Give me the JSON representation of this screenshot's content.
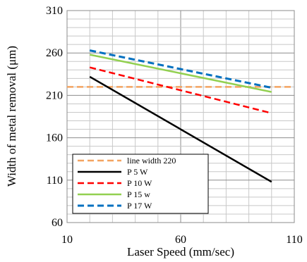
{
  "chart_data": {
    "type": "line",
    "title": "",
    "xlabel": "Laser Speed  (mm/sec)",
    "ylabel": "Width of metal removal (μm)",
    "xlim": [
      10,
      110
    ],
    "ylim": [
      60,
      310
    ],
    "x_ticks": [
      "10",
      "60",
      "110"
    ],
    "y_ticks": [
      "60",
      "110",
      "160",
      "210",
      "260",
      "310"
    ],
    "grid": true,
    "legend_position": "bottom-left",
    "series": [
      {
        "name": "line width 220",
        "color": "#f4a460",
        "dash": "dashed",
        "width": 2.5,
        "x": [
          10,
          110
        ],
        "y": [
          220,
          220
        ]
      },
      {
        "name": "P 5 W",
        "color": "#000000",
        "dash": "solid",
        "width": 2.5,
        "x": [
          20,
          100
        ],
        "y": [
          232,
          108
        ]
      },
      {
        "name": "P 10 W",
        "color": "#ff0000",
        "dash": "dashed",
        "width": 2.5,
        "x": [
          20,
          100
        ],
        "y": [
          243,
          189
        ]
      },
      {
        "name": "P 15 w",
        "color": "#92d050",
        "dash": "solid",
        "width": 2.5,
        "x": [
          20,
          100
        ],
        "y": [
          258,
          214
        ]
      },
      {
        "name": "P 17 W",
        "color": "#0070c0",
        "dash": "dashed",
        "width": 3,
        "x": [
          20,
          100
        ],
        "y": [
          263,
          219
        ]
      }
    ]
  }
}
